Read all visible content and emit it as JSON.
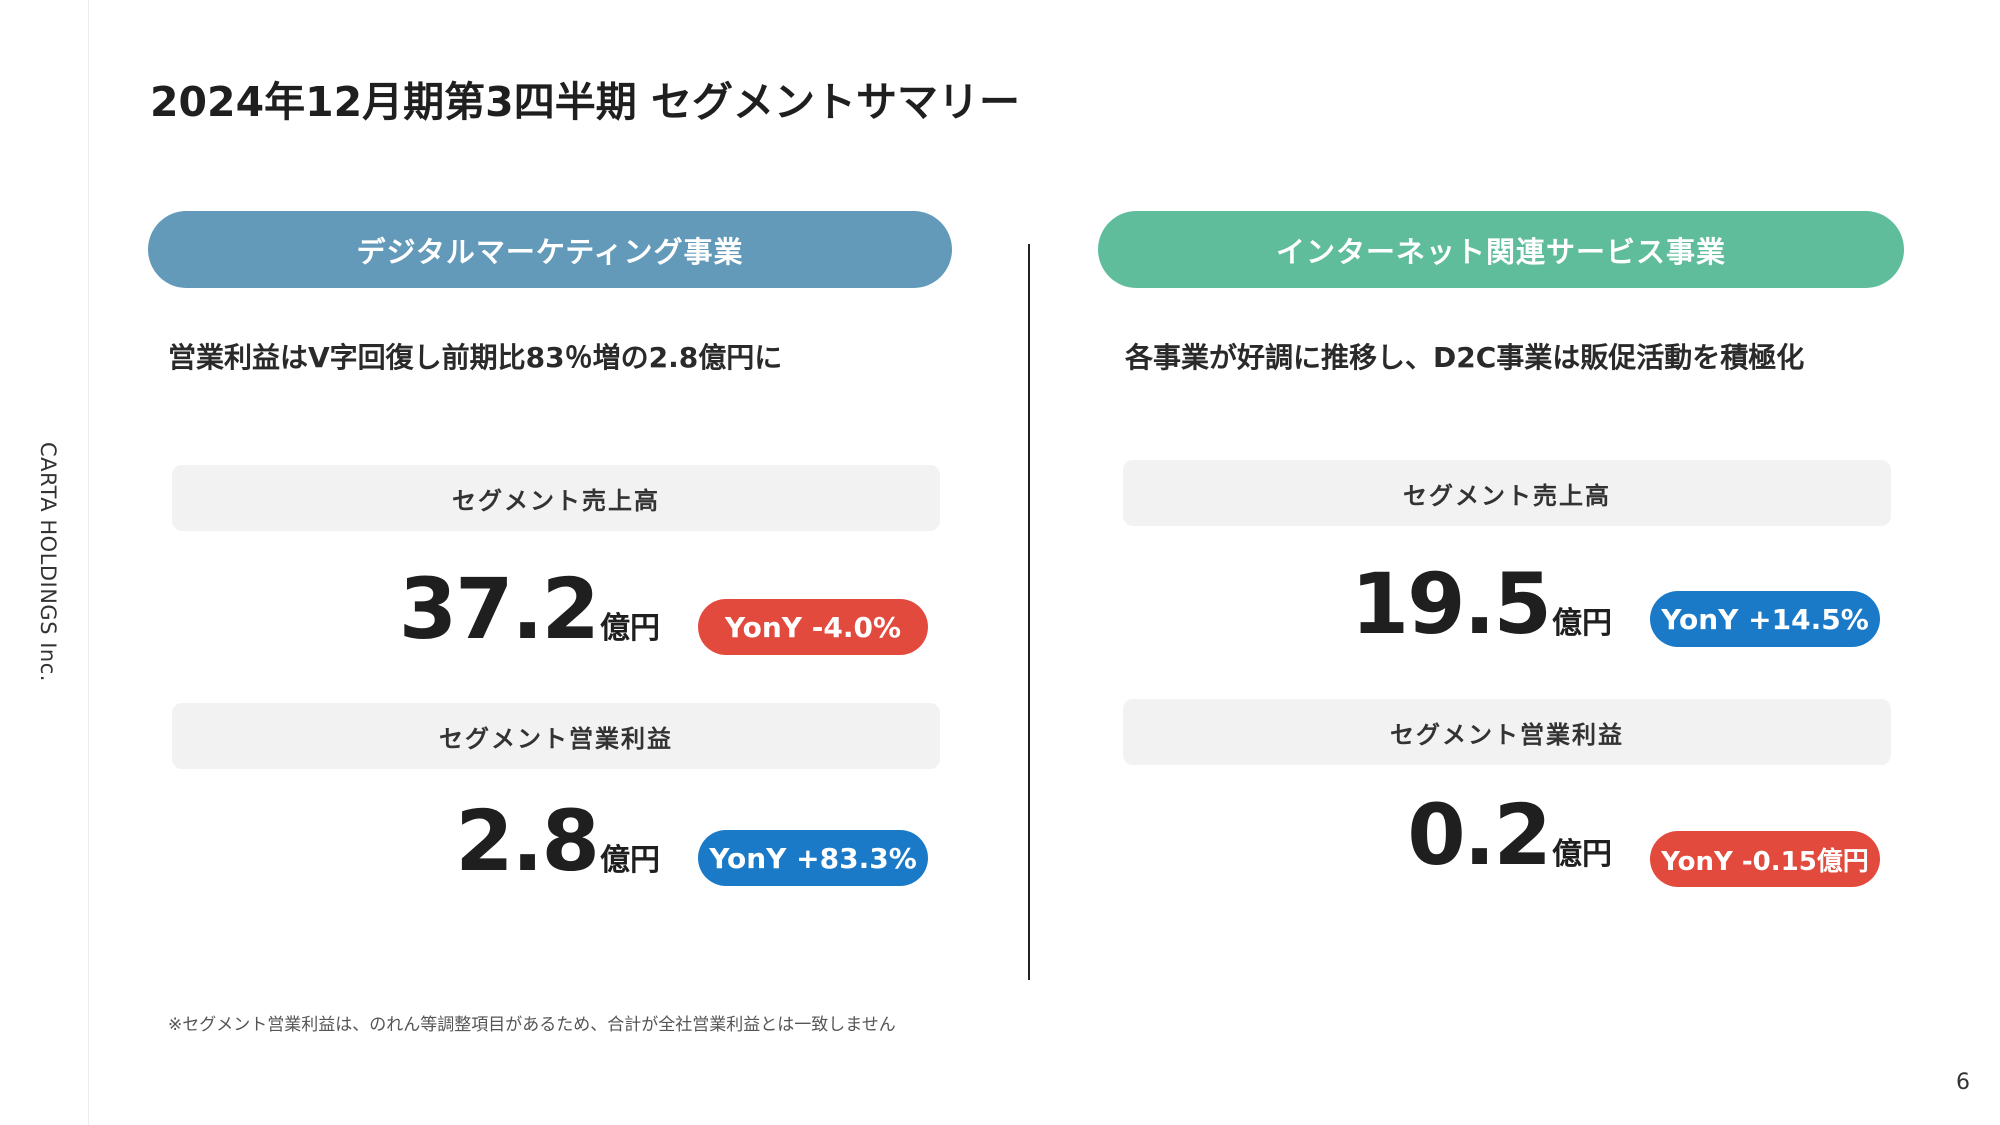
{
  "sidebar": {
    "company": "CARTA HOLDINGS Inc."
  },
  "title": "2024年12月期第3四半期 セグメントサマリー",
  "colors": {
    "left_header": "#6399b9",
    "right_header": "#5fbd9c",
    "negative": "#e24a3d",
    "positive": "#1a7ac8"
  },
  "left": {
    "header": "デジタルマーケティング事業",
    "headline": "営業利益はV字回復し前期比83％増の2.8億円に",
    "sales_label": "セグメント売上高",
    "sales_value": "37.2",
    "sales_unit": "億円",
    "sales_yoy": "YonY -4.0%",
    "profit_label": "セグメント営業利益",
    "profit_value": "2.8",
    "profit_unit": "億円",
    "profit_yoy": "YonY +83.3%"
  },
  "right": {
    "header": "インターネット関連サービス事業",
    "headline": "各事業が好調に推移し、D2C事業は販促活動を積極化",
    "sales_label": "セグメント売上高",
    "sales_value": "19.5",
    "sales_unit": "億円",
    "sales_yoy": "YonY +14.5%",
    "profit_label": "セグメント営業利益",
    "profit_value": "0.2",
    "profit_unit": "億円",
    "profit_yoy": "YonY -0.15億円"
  },
  "footnote": "※セグメント営業利益は、のれん等調整項目があるため、合計が全社営業利益とは一致しません",
  "page_number": "6"
}
